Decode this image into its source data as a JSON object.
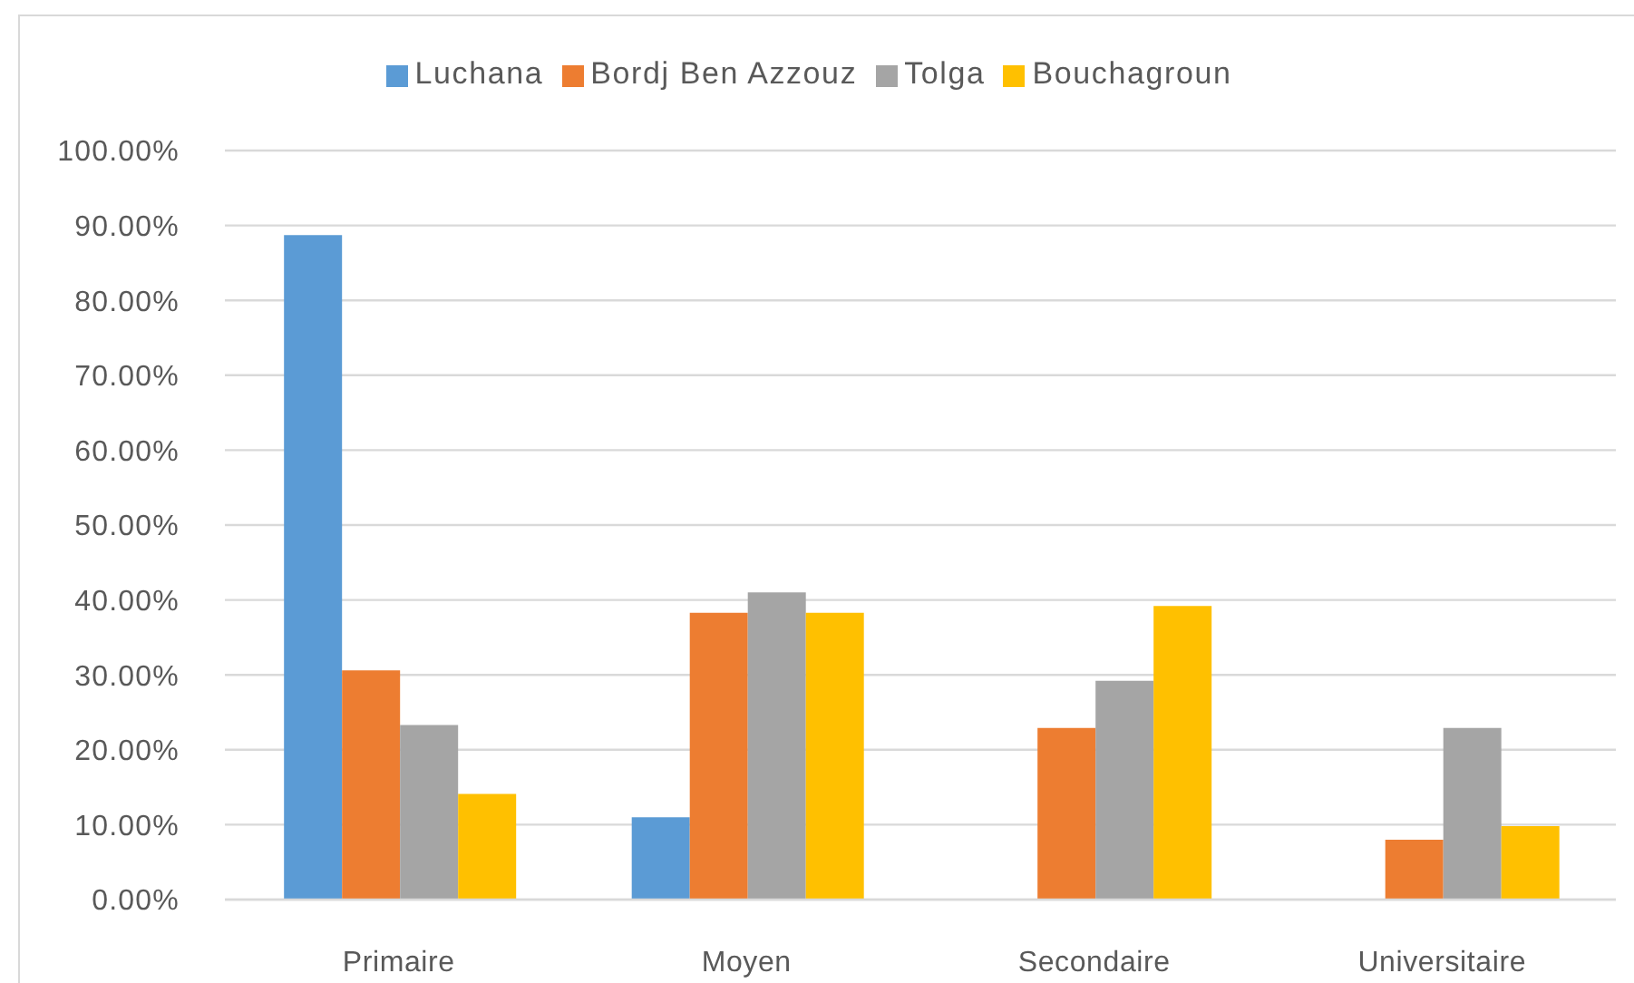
{
  "chart_data": {
    "type": "bar",
    "categories": [
      "Primaire",
      "Moyen",
      "Secondaire",
      "Universitaire"
    ],
    "series": [
      {
        "name": "Luchana",
        "color": "#5b9bd5",
        "values": [
          88.7,
          11.0,
          0,
          0
        ]
      },
      {
        "name": "Bordj Ben Azzouz",
        "color": "#ed7d31",
        "values": [
          30.6,
          38.3,
          22.9,
          8.0
        ]
      },
      {
        "name": "Tolga",
        "color": "#a5a5a5",
        "values": [
          23.3,
          41.0,
          29.2,
          22.9
        ]
      },
      {
        "name": "Bouchagroun",
        "color": "#ffc000",
        "values": [
          14.1,
          38.3,
          39.2,
          9.8
        ]
      }
    ],
    "ylim": [
      0,
      100
    ],
    "yticks": [
      {
        "value": 0,
        "label": "0.00%"
      },
      {
        "value": 10,
        "label": "10.00%"
      },
      {
        "value": 20,
        "label": "20.00%"
      },
      {
        "value": 30,
        "label": "30.00%"
      },
      {
        "value": 40,
        "label": "40.00%"
      },
      {
        "value": 50,
        "label": "50.00%"
      },
      {
        "value": 60,
        "label": "60.00%"
      },
      {
        "value": 70,
        "label": "70.00%"
      },
      {
        "value": 80,
        "label": "80.00%"
      },
      {
        "value": 90,
        "label": "90.00%"
      },
      {
        "value": 100,
        "label": "100.00%"
      }
    ],
    "grid": "y",
    "legend": "top"
  }
}
